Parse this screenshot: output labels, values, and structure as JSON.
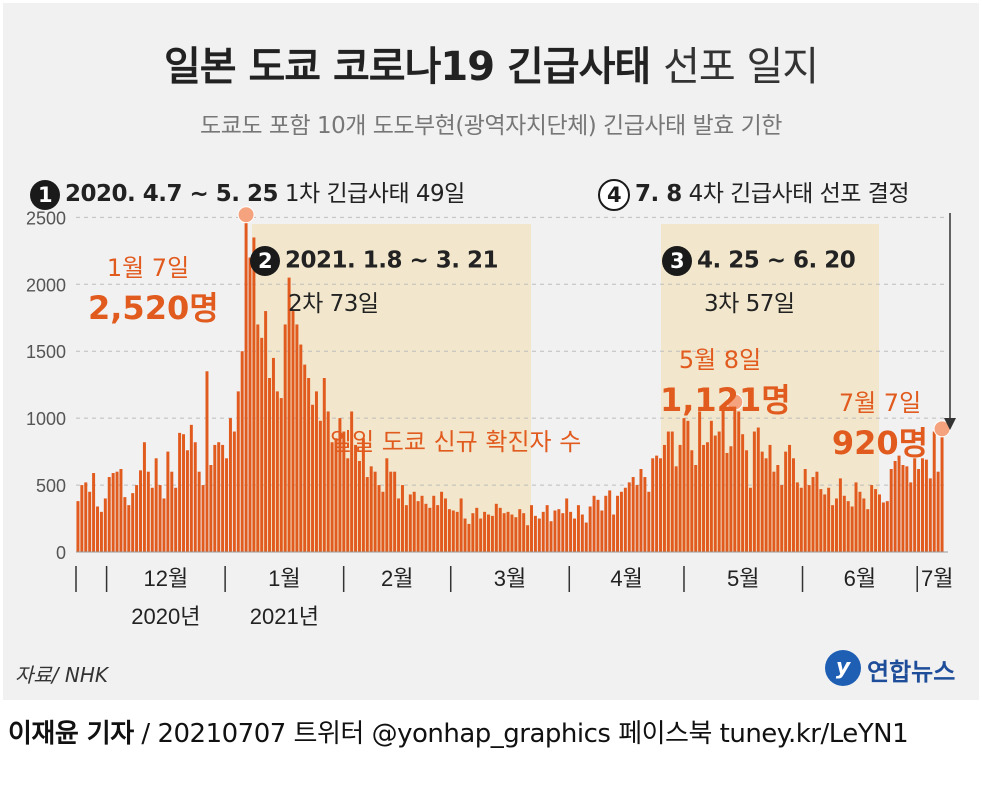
{
  "title": {
    "bold": "일본 도쿄 코로나19 긴급사태",
    "light": "선포 일지"
  },
  "subtitle": "도쿄도 포함 10개 도도부현(광역자치단체) 긴급사태 발효 기한",
  "events": [
    {
      "marker": "1",
      "text": "2020. 4.7 ~ 5. 25",
      "detail": "1차 긴급사태 49일"
    },
    {
      "marker": "2",
      "text": "2021. 1.8 ~ 3. 21",
      "detail": "2차 73일"
    },
    {
      "marker": "3",
      "text": "4. 25 ~ 6. 20",
      "detail": "3차 57일"
    },
    {
      "marker": "4",
      "text": "7. 8",
      "detail": "4차 긴급사태 선포 결정"
    }
  ],
  "peaks": [
    {
      "date": "1월 7일",
      "value_label": "2,520명",
      "value": 2520
    },
    {
      "date": "5월 8일",
      "value_label": "1,121명",
      "value": 1121
    },
    {
      "date": "7월 7일",
      "value_label": "920명",
      "value": 920
    }
  ],
  "series_label": "일일 도쿄 신규 확진자 수",
  "source": "자료/ NHK",
  "logo": "연합뉴스",
  "footer": {
    "author": "이재윤 기자",
    "rest": " / 20210707   트위터 @yonhap_graphics  페이스북 tuney.kr/LeYN1"
  },
  "colors": {
    "bar": "#e15a1e",
    "shade": "#f2e7cc",
    "peak_dot": "#f5a37f",
    "text_accent": "#e15a1e"
  },
  "chart_data": {
    "type": "bar",
    "title": "일일 도쿄 신규 확진자 수",
    "xlabel": "",
    "ylabel": "",
    "ylim": [
      0,
      2600
    ],
    "yticks": [
      0,
      500,
      1000,
      1500,
      2000,
      2500
    ],
    "date_range": [
      "2020-11-23",
      "2021-07-07"
    ],
    "month_labels": [
      "12월",
      "1월",
      "2월",
      "3월",
      "4월",
      "5월",
      "6월",
      "7월"
    ],
    "year_labels": [
      "2020년",
      "2021년"
    ],
    "emergency_periods": [
      {
        "name": "2차",
        "start": "2021-01-08",
        "end": "2021-03-21"
      },
      {
        "name": "3차",
        "start": "2021-04-25",
        "end": "2021-06-20"
      }
    ],
    "values": [
      380,
      500,
      520,
      450,
      590,
      340,
      300,
      400,
      560,
      590,
      600,
      620,
      410,
      350,
      440,
      500,
      610,
      820,
      600,
      480,
      700,
      500,
      400,
      750,
      600,
      480,
      890,
      880,
      760,
      950,
      820,
      600,
      500,
      1350,
      650,
      800,
      820,
      800,
      700,
      1000,
      900,
      1200,
      1500,
      2520,
      2200,
      2350,
      1700,
      1600,
      1800,
      1300,
      1450,
      1200,
      1150,
      1700,
      2050,
      1800,
      1700,
      1550,
      1400,
      1300,
      1100,
      1200,
      980,
      1300,
      1050,
      820,
      850,
      1000,
      900,
      700,
      1050,
      800,
      680,
      850,
      560,
      640,
      600,
      500,
      450,
      700,
      600,
      600,
      400,
      500,
      350,
      430,
      450,
      380,
      420,
      360,
      330,
      420,
      350,
      450,
      400,
      320,
      310,
      300,
      400,
      250,
      210,
      290,
      330,
      250,
      300,
      280,
      270,
      360,
      330,
      290,
      300,
      280,
      260,
      320,
      290,
      200,
      350,
      270,
      250,
      300,
      350,
      230,
      310,
      320,
      290,
      400,
      300,
      250,
      350,
      280,
      220,
      340,
      420,
      390,
      310,
      420,
      460,
      280,
      420,
      450,
      480,
      520,
      560,
      500,
      620,
      560,
      450,
      700,
      720,
      700,
      800,
      900,
      900,
      640,
      800,
      1000,
      980,
      760,
      650,
      1050,
      800,
      820,
      980,
      870,
      900,
      1080,
      740,
      790,
      1121,
      1050,
      880,
      760,
      480,
      900,
      930,
      750,
      700,
      800,
      600,
      650,
      500,
      750,
      800,
      700,
      520,
      480,
      620,
      500,
      560,
      600,
      470,
      430,
      480,
      350,
      400,
      550,
      420,
      380,
      340,
      520,
      450,
      400,
      320,
      500,
      470,
      430,
      370,
      380,
      620,
      680,
      720,
      650,
      640,
      520,
      700,
      620,
      700,
      690,
      550,
      900,
      600,
      920
    ]
  }
}
